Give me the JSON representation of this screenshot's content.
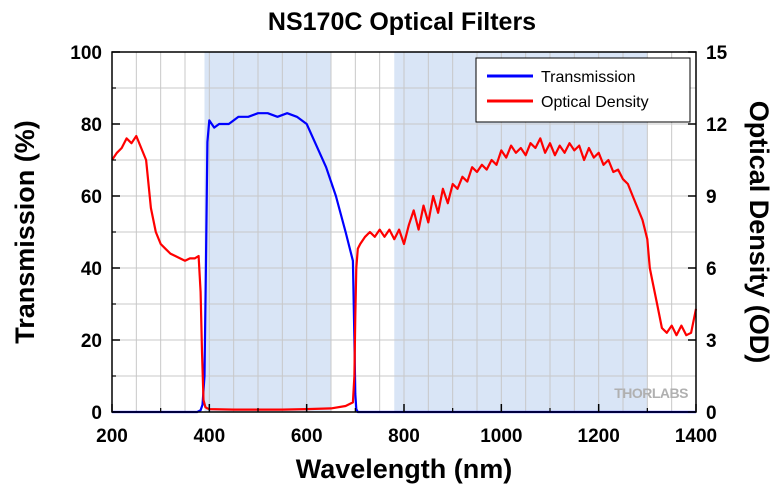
{
  "chart_data": {
    "type": "line",
    "title": "NS170C Optical Filters",
    "xlabel": "Wavelength (nm)",
    "ylabel": "Transmission (%)",
    "y2label": "Optical Density (OD)",
    "xlim": [
      200,
      1400
    ],
    "ylim": [
      0,
      100
    ],
    "y2lim": [
      0,
      15
    ],
    "xticks": [
      200,
      400,
      600,
      800,
      1000,
      1200,
      1400
    ],
    "yticks": [
      0,
      20,
      40,
      60,
      80,
      100
    ],
    "y2ticks": [
      0,
      3,
      6,
      9,
      12,
      15
    ],
    "grid": true,
    "legend_position": "top-right",
    "shaded_regions_nm": [
      [
        390,
        650
      ],
      [
        780,
        1300
      ]
    ],
    "watermark": "THORLABS",
    "colors": {
      "transmission": "#0000ff",
      "optical_density": "#ff0000",
      "shade": "#d9e5f6",
      "grid": "#c8c8c8"
    },
    "series": [
      {
        "name": "Transmission",
        "axis": "left",
        "x": [
          200,
          375,
          382,
          386,
          390,
          393,
          396,
          400,
          410,
          420,
          440,
          460,
          480,
          500,
          520,
          540,
          560,
          580,
          600,
          620,
          640,
          660,
          680,
          695,
          698,
          700,
          702,
          705,
          710,
          800,
          1000,
          1200,
          1400
        ],
        "values": [
          0,
          0,
          0.5,
          2,
          10,
          40,
          75,
          81,
          79,
          80,
          80,
          82,
          82,
          83,
          83,
          82,
          83,
          82,
          80,
          74,
          68,
          60,
          50,
          42,
          20,
          5,
          0.8,
          0,
          0,
          0,
          0,
          0,
          0
        ]
      },
      {
        "name": "Optical Density",
        "axis": "right",
        "x": [
          200,
          210,
          220,
          230,
          240,
          250,
          260,
          270,
          280,
          290,
          300,
          310,
          320,
          330,
          340,
          350,
          360,
          370,
          378,
          382,
          385,
          388,
          392,
          396,
          400,
          450,
          500,
          550,
          600,
          650,
          680,
          695,
          698,
          700,
          702,
          705,
          710,
          720,
          730,
          740,
          750,
          760,
          770,
          780,
          790,
          800,
          810,
          820,
          830,
          840,
          850,
          860,
          870,
          880,
          890,
          900,
          910,
          920,
          930,
          940,
          950,
          960,
          970,
          980,
          990,
          1000,
          1010,
          1020,
          1030,
          1040,
          1050,
          1060,
          1070,
          1080,
          1090,
          1100,
          1110,
          1120,
          1130,
          1140,
          1150,
          1160,
          1170,
          1180,
          1190,
          1200,
          1210,
          1220,
          1230,
          1240,
          1250,
          1260,
          1270,
          1280,
          1290,
          1300,
          1305,
          1310,
          1320,
          1330,
          1340,
          1350,
          1360,
          1370,
          1380,
          1390,
          1400
        ],
        "values": [
          10.5,
          10.8,
          11.0,
          11.4,
          11.2,
          11.5,
          11.0,
          10.5,
          8.5,
          7.5,
          7.0,
          6.8,
          6.6,
          6.5,
          6.4,
          6.3,
          6.4,
          6.4,
          6.5,
          5.0,
          2.5,
          0.5,
          0.2,
          0.15,
          0.12,
          0.1,
          0.1,
          0.1,
          0.12,
          0.15,
          0.25,
          0.4,
          1.5,
          4.0,
          6.0,
          6.8,
          7.0,
          7.3,
          7.5,
          7.3,
          7.6,
          7.3,
          7.6,
          7.2,
          7.6,
          7.0,
          7.8,
          8.4,
          7.6,
          8.6,
          7.9,
          9.0,
          8.3,
          9.3,
          8.7,
          9.5,
          9.3,
          9.8,
          9.6,
          10.2,
          10.0,
          10.3,
          10.1,
          10.5,
          10.3,
          10.9,
          10.6,
          11.1,
          10.8,
          11.0,
          10.7,
          11.2,
          11.0,
          11.4,
          10.8,
          11.2,
          10.7,
          11.1,
          10.8,
          11.2,
          10.9,
          11.1,
          10.5,
          11.0,
          10.6,
          10.8,
          10.3,
          10.5,
          10.0,
          10.1,
          9.7,
          9.5,
          9.0,
          8.5,
          8.0,
          7.2,
          6.0,
          5.5,
          4.5,
          3.5,
          3.3,
          3.6,
          3.2,
          3.6,
          3.2,
          3.3,
          4.3
        ]
      }
    ]
  }
}
